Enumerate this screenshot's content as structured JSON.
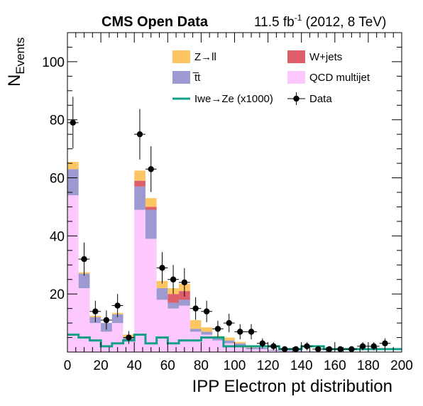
{
  "colors": {
    "zll": "#fcc763",
    "wjets": "#df5e6c",
    "ttbar": "#9c9ad0",
    "qcd": "#fdc8fd",
    "signal": "#12a089",
    "data": "#000000"
  },
  "header": {
    "experiment": "CMS Open Data",
    "lumi": "11.5 fb",
    "lumi_sup": "-1",
    "energy": " (2012, 8 TeV)"
  },
  "chart_data": {
    "type": "bar",
    "stacked": true,
    "title": "",
    "xlabel": "IPP Electron pt distribution",
    "ylabel_main": "N",
    "ylabel_sub": "Events",
    "xlim": [
      0,
      200
    ],
    "ylim": [
      0,
      110
    ],
    "bin_width": 6.67,
    "x_ticks": [
      "0",
      "20",
      "40",
      "60",
      "80",
      "100",
      "120",
      "140",
      "160",
      "180",
      "200"
    ],
    "y_ticks": [
      "20",
      "40",
      "60",
      "80",
      "100"
    ],
    "categories": [
      "3.3",
      "10.0",
      "16.7",
      "23.3",
      "30.0",
      "36.7",
      "43.3",
      "50.0",
      "56.7",
      "63.3",
      "70.0",
      "76.7",
      "83.3",
      "90.0",
      "96.7",
      "103.3",
      "110.0",
      "116.7",
      "123.3",
      "130.0",
      "136.7",
      "143.3",
      "150.0",
      "156.7",
      "163.3",
      "170.0",
      "176.7",
      "183.3",
      "190.0",
      "196.7"
    ],
    "series": [
      {
        "name": "QCD multijet",
        "color_key": "qcd",
        "values": [
          54,
          22,
          10,
          7,
          10,
          4,
          49,
          39,
          18,
          15,
          16,
          7,
          6,
          4,
          3,
          2,
          1,
          1,
          0.5,
          0.3,
          0.3,
          0.2,
          0.2,
          0.1,
          0.1,
          0.1,
          0,
          0,
          0,
          0
        ]
      },
      {
        "name": "t̅t",
        "color_key": "ttbar",
        "values": [
          9,
          5,
          2,
          3,
          3,
          1,
          8,
          10,
          4,
          2,
          2,
          1,
          1,
          1,
          1,
          1,
          0.5,
          0.5,
          0.3,
          0.2,
          0.2,
          0.1,
          0.1,
          0.1,
          0,
          0,
          0,
          0,
          0,
          0
        ]
      },
      {
        "name": "W+jets",
        "color_key": "wjets",
        "values": [
          0,
          0,
          0,
          0,
          0,
          0,
          2,
          1,
          0,
          3,
          3,
          0,
          0,
          0,
          0,
          0,
          0,
          0,
          0,
          0,
          0,
          0,
          0,
          0,
          0,
          0,
          0,
          0,
          0,
          0
        ]
      },
      {
        "name": "Z→ll",
        "color_key": "zll",
        "values": [
          2.5,
          0.5,
          0.5,
          0,
          0.5,
          1,
          3.5,
          3,
          2.5,
          2,
          2.5,
          3,
          1.5,
          0.5,
          1,
          0.5,
          0.5,
          0,
          0,
          0,
          0,
          0,
          0,
          0,
          0,
          0,
          0,
          0,
          0,
          0
        ]
      }
    ],
    "signal": {
      "name": "Iwe→Ze (x1000)",
      "color_key": "signal",
      "values": [
        6,
        5,
        4,
        2,
        3,
        4,
        6,
        3,
        5,
        3,
        4,
        4,
        5,
        5,
        2,
        2,
        2,
        2,
        2,
        1,
        1,
        2,
        2,
        1,
        1,
        1,
        1,
        1,
        1,
        1
      ]
    },
    "data": {
      "name": "Data",
      "x": [
        3.3,
        10,
        16.7,
        23.3,
        30,
        36.7,
        43.3,
        50,
        56.7,
        63.3,
        70,
        76.7,
        83.3,
        90,
        96.7,
        103.3,
        110,
        116.7,
        123.3,
        130,
        136.7,
        143.3,
        150,
        156.7,
        163.3,
        170,
        176.7,
        183.3,
        190
      ],
      "y": [
        79,
        32,
        14,
        11,
        16,
        5,
        75,
        63,
        29,
        25,
        24,
        15,
        14,
        8,
        10,
        7,
        7,
        3,
        2,
        1,
        1,
        2,
        1,
        1,
        1,
        1,
        2,
        2,
        3
      ],
      "err": [
        8.9,
        5.7,
        3.7,
        3.3,
        4,
        2.2,
        8.7,
        7.9,
        5.4,
        5,
        4.9,
        3.9,
        3.7,
        2.8,
        3.2,
        2.6,
        2.6,
        1.7,
        1.4,
        1,
        1,
        1.4,
        1,
        1,
        1,
        1,
        1.4,
        1.4,
        1.7
      ]
    },
    "legend": {
      "placement": "top-right",
      "entries": [
        {
          "label": "Z→ll",
          "kind": "box",
          "color_key": "zll"
        },
        {
          "label": "W+jets",
          "kind": "box",
          "color_key": "wjets"
        },
        {
          "label": "t̅t",
          "kind": "box",
          "color_key": "ttbar"
        },
        {
          "label": "QCD multijet",
          "kind": "box",
          "color_key": "qcd"
        },
        {
          "label": "Iwe→Ze (x1000)",
          "kind": "line",
          "color_key": "signal"
        },
        {
          "label": "Data",
          "kind": "marker",
          "color_key": "data"
        }
      ]
    },
    "grid": false
  }
}
